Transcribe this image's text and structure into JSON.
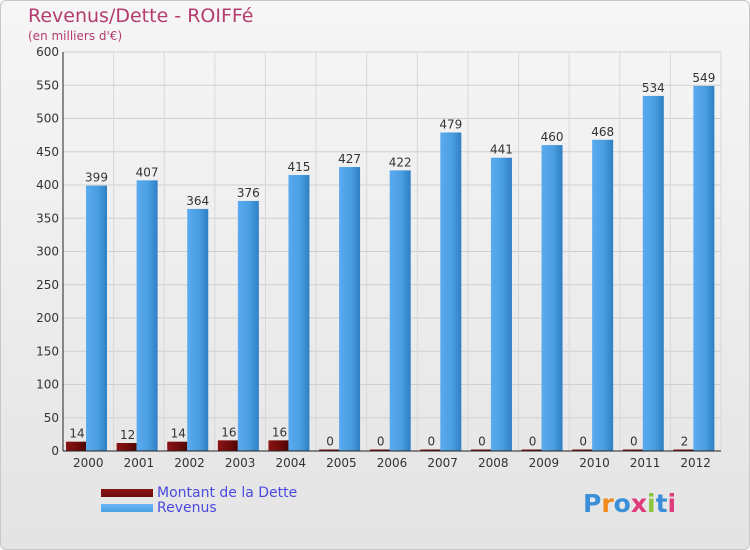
{
  "chart_data": {
    "type": "bar",
    "title": "Revenus/Dette - ROIFFé",
    "subtitle": "(en milliers d'€)",
    "categories": [
      "2000",
      "2001",
      "2002",
      "2003",
      "2004",
      "2005",
      "2006",
      "2007",
      "2008",
      "2009",
      "2010",
      "2011",
      "2012"
    ],
    "series": [
      {
        "name": "Montant de la Dette",
        "color": "#6e0a0a",
        "values": [
          14,
          12,
          14,
          16,
          16,
          0,
          0,
          0,
          0,
          0,
          0,
          0,
          2
        ]
      },
      {
        "name": "Revenus",
        "color": "#4a9fe0",
        "values": [
          399,
          407,
          364,
          376,
          415,
          427,
          422,
          479,
          441,
          460,
          468,
          534,
          549
        ]
      }
    ],
    "y_ticks": [
      0,
      50,
      100,
      150,
      200,
      250,
      300,
      350,
      400,
      450,
      500,
      550,
      600
    ],
    "ylim": [
      0,
      600
    ],
    "grid": true,
    "legend_position": "bottom-left"
  },
  "legend": {
    "items": [
      {
        "label": "Montant de la Dette",
        "color": "#6e0a0a"
      },
      {
        "label": "Revenus",
        "color": "#4a9fe0"
      }
    ]
  },
  "logo": {
    "text": "Proxiti",
    "colors": [
      "#3a8fd8",
      "#f28a1c",
      "#3a8fd8",
      "#e03c7c",
      "#8cc63f",
      "#3a8fd8",
      "#e03c7c"
    ]
  }
}
